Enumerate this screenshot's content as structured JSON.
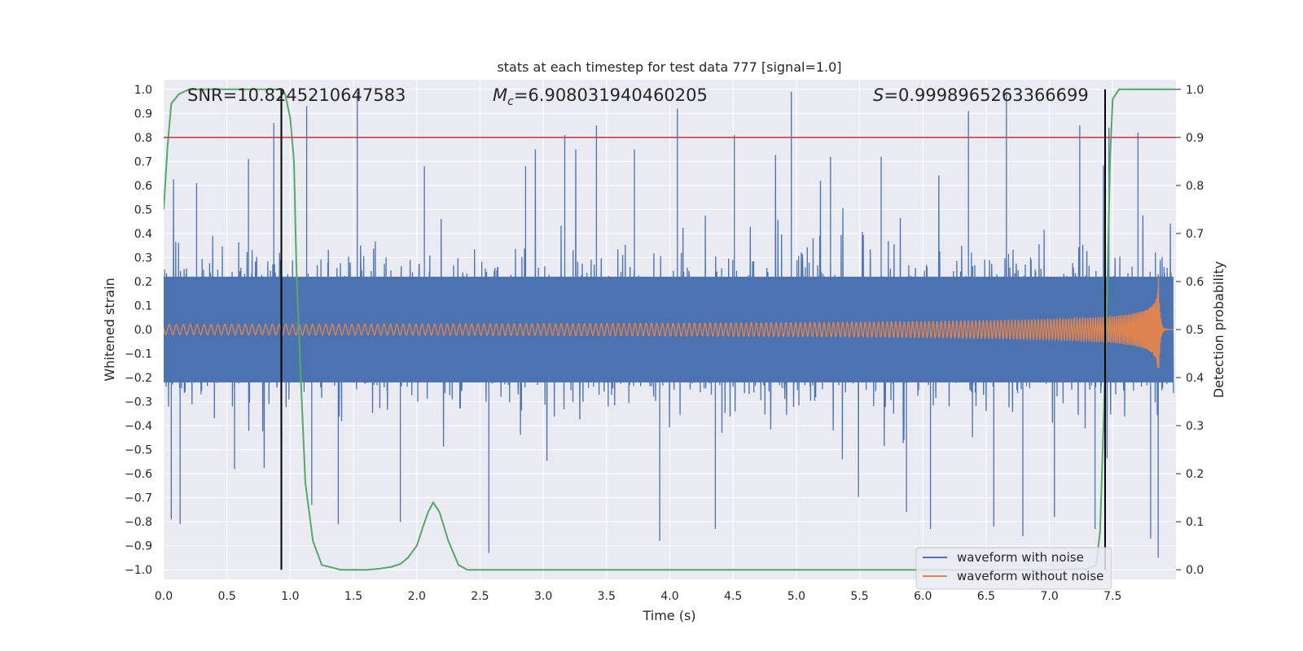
{
  "chart_data": {
    "type": "line",
    "title": "stats at each timestep for test data 777 [signal=1.0]",
    "xlabel": "Time (s)",
    "ylabel": "Whitened strain",
    "y2label": "Detection probability",
    "xlim": [
      0.0,
      8.0
    ],
    "ylim": [
      -1.04,
      1.04
    ],
    "y2lim": [
      -0.02,
      1.02
    ],
    "xticks": [
      "0.0",
      "0.5",
      "1.0",
      "1.5",
      "2.0",
      "2.5",
      "3.0",
      "3.5",
      "4.0",
      "4.5",
      "5.0",
      "5.5",
      "6.0",
      "6.5",
      "7.0",
      "7.5"
    ],
    "yticks": [
      "1.0",
      "0.9",
      "0.8",
      "0.7",
      "0.6",
      "0.5",
      "0.4",
      "0.3",
      "0.2",
      "0.1",
      "0.0",
      "−0.1",
      "−0.2",
      "−0.3",
      "−0.4",
      "−0.5",
      "−0.6",
      "−0.7",
      "−0.8",
      "−0.9",
      "−1.0"
    ],
    "y2ticks": [
      "1.0",
      "0.9",
      "0.8",
      "0.7",
      "0.6",
      "0.5",
      "0.4",
      "0.3",
      "0.2",
      "0.1",
      "0.0"
    ],
    "annotations": {
      "snr": "SNR=10.8245210647583",
      "mc_symbol": "M",
      "mc_sub": "c",
      "mc_value": "=6.908031940460205",
      "s_symbol": "S",
      "s_value": "=0.9998965263366699"
    },
    "threshold_probability": 0.9,
    "vertical_markers_x": [
      0.93,
      7.44
    ],
    "series": [
      {
        "name": "waveform with noise",
        "color": "#4c72b0",
        "description": "noise band, typical envelope ~0.25, spikes up to ~1.0",
        "spikes": [
          [
            0.06,
            -0.79
          ],
          [
            0.13,
            -0.81
          ],
          [
            0.26,
            0.61
          ],
          [
            0.56,
            -0.58
          ],
          [
            0.67,
            0.71
          ],
          [
            0.87,
            0.86
          ],
          [
            0.93,
            -0.77
          ],
          [
            1.13,
            0.93
          ],
          [
            1.17,
            -0.73
          ],
          [
            1.38,
            -0.81
          ],
          [
            1.53,
            0.99
          ],
          [
            1.87,
            -0.8
          ],
          [
            2.06,
            0.68
          ],
          [
            2.57,
            -0.93
          ],
          [
            2.86,
            0.68
          ],
          [
            3.17,
            0.81
          ],
          [
            3.42,
            0.85
          ],
          [
            3.72,
            0.75
          ],
          [
            3.92,
            -0.88
          ],
          [
            4.06,
            0.92
          ],
          [
            4.36,
            -0.83
          ],
          [
            4.51,
            0.81
          ],
          [
            4.96,
            0.99
          ],
          [
            5.27,
            0.72
          ],
          [
            5.67,
            0.72
          ],
          [
            5.87,
            -0.76
          ],
          [
            6.06,
            -0.83
          ],
          [
            6.36,
            0.91
          ],
          [
            6.56,
            -0.82
          ],
          [
            6.66,
            0.99
          ],
          [
            6.79,
            -0.86
          ],
          [
            7.04,
            -0.78
          ],
          [
            7.24,
            0.85
          ],
          [
            7.36,
            -0.83
          ],
          [
            7.47,
            0.84
          ],
          [
            7.7,
            0.82
          ],
          [
            7.8,
            -0.87
          ],
          [
            7.86,
            -0.95
          ]
        ]
      },
      {
        "name": "waveform without noise",
        "color": "#dd8452",
        "description": "chirp, amplitude 0.02 rising to ~0.3 at merger near 7.86 s, then ringdown to 0"
      },
      {
        "name": "detection probability",
        "color": "#55a868",
        "axis": "right",
        "x": [
          0.0,
          0.03,
          0.06,
          0.12,
          0.2,
          0.4,
          0.6,
          0.8,
          0.93,
          0.96,
          1.0,
          1.03,
          1.05,
          1.08,
          1.12,
          1.18,
          1.25,
          1.4,
          1.6,
          1.7,
          1.8,
          1.87,
          1.93,
          2.0,
          2.05,
          2.09,
          2.13,
          2.18,
          2.25,
          2.33,
          2.4,
          2.6,
          3.0,
          4.0,
          5.0,
          6.0,
          7.0,
          7.3,
          7.37,
          7.4,
          7.43,
          7.46,
          7.48,
          7.5,
          7.55,
          7.7,
          8.0
        ],
        "values": [
          0.75,
          0.88,
          0.97,
          0.99,
          1.0,
          1.0,
          1.0,
          1.0,
          1.0,
          0.99,
          0.94,
          0.85,
          0.62,
          0.42,
          0.18,
          0.06,
          0.01,
          0.0,
          0.0,
          0.002,
          0.006,
          0.012,
          0.025,
          0.05,
          0.09,
          0.12,
          0.14,
          0.12,
          0.06,
          0.01,
          0.0,
          0.0,
          0.0,
          0.0,
          0.0,
          0.0,
          0.0,
          0.002,
          0.01,
          0.08,
          0.32,
          0.62,
          0.86,
          0.98,
          1.0,
          1.0,
          1.0
        ]
      }
    ],
    "legend_location": "lower right",
    "colors": {
      "background": "#eaeaf2",
      "grid": "#ffffff",
      "threshold": "#c44e52",
      "marker": "#000000",
      "text": "#262626"
    }
  }
}
